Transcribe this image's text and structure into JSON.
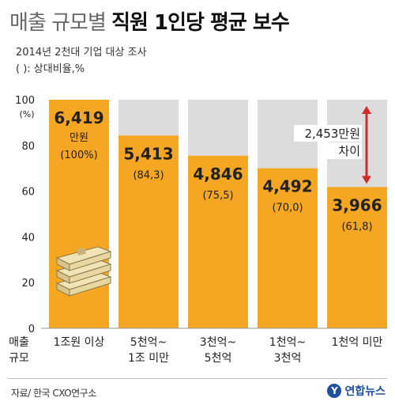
{
  "header": {
    "title_part1": "매출 규모별",
    "title_part2": "직원 1인당 평균 보수",
    "subtitle": "2014년 2천대 기업 대상 조사",
    "note": "( ): 상대비율,%"
  },
  "chart_data": {
    "type": "bar",
    "ylim": [
      0,
      100
    ],
    "y_unit_label": "(%)",
    "y_ticks": [
      0,
      20,
      40,
      60,
      80,
      100
    ],
    "xlabel": "매출\n규모",
    "categories": [
      "1조원 이상",
      "5천억~\n1조 미만",
      "3천억~\n5천억",
      "1천억~\n3천억",
      "1천억 미만"
    ],
    "values": [
      100,
      84.3,
      75.5,
      70.0,
      61.8
    ],
    "amount_labels": [
      "6,419",
      "5,413",
      "4,846",
      "4,492",
      "3,966"
    ],
    "unit_label": "만원",
    "pct_labels": [
      "(100%)",
      "(84,3)",
      "(75,5)",
      "(70,0)",
      "(61,8)"
    ],
    "annotation": "2,453만원\n차이",
    "colors": {
      "bar": "#f5a623",
      "background": "#dcdcdc",
      "arrow": "#d42a2a"
    }
  },
  "footer": {
    "source": "자료/ 한국 CXO연구소",
    "logo_mark": "Y",
    "logo_text": "연합뉴스"
  }
}
